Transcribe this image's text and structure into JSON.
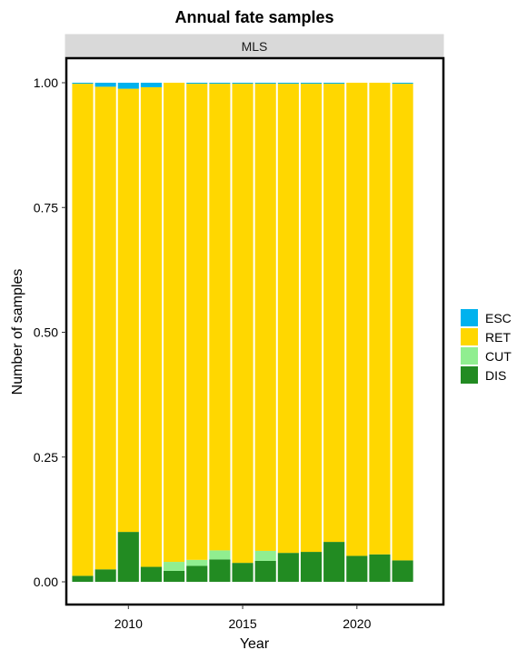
{
  "chart_data": {
    "type": "bar",
    "stacked": true,
    "title": "Annual fate samples",
    "facet_label": "MLS",
    "xlabel": "Year",
    "ylabel": "Number of samples",
    "x": [
      2008,
      2009,
      2010,
      2011,
      2012,
      2013,
      2014,
      2015,
      2016,
      2017,
      2018,
      2019,
      2020,
      2021,
      2022
    ],
    "x_ticks": [
      2010,
      2015,
      2020
    ],
    "x_tick_labels": [
      "2010",
      "2015",
      "2020"
    ],
    "ylim": [
      0,
      1
    ],
    "y_ticks": [
      0,
      0.25,
      0.5,
      0.75,
      1
    ],
    "y_tick_labels": [
      "0.00",
      "0.25",
      "0.50",
      "0.75",
      "1.00"
    ],
    "grid": false,
    "legend_position": "right",
    "series": [
      {
        "name": "DIS",
        "color": "#228B22",
        "values": [
          0.012,
          0.025,
          0.1,
          0.03,
          0.022,
          0.032,
          0.045,
          0.038,
          0.042,
          0.058,
          0.06,
          0.08,
          0.052,
          0.055,
          0.043
        ]
      },
      {
        "name": "CUT",
        "color": "#90EE90",
        "values": [
          0.0,
          0.0,
          0.0,
          0.0,
          0.018,
          0.012,
          0.018,
          0.0,
          0.02,
          0.0,
          0.0,
          0.0,
          0.0,
          0.0,
          0.0
        ]
      },
      {
        "name": "RET",
        "color": "#FFD700",
        "values": [
          0.986,
          0.967,
          0.888,
          0.961,
          0.96,
          0.954,
          0.935,
          0.96,
          0.936,
          0.94,
          0.938,
          0.918,
          0.948,
          0.945,
          0.955
        ]
      },
      {
        "name": "ESC",
        "color": "#00B2EE",
        "values": [
          0.002,
          0.008,
          0.012,
          0.009,
          0.0,
          0.002,
          0.002,
          0.002,
          0.002,
          0.002,
          0.002,
          0.002,
          0.0,
          0.0,
          0.002
        ]
      }
    ],
    "legend_order": [
      "ESC",
      "RET",
      "CUT",
      "DIS"
    ]
  }
}
